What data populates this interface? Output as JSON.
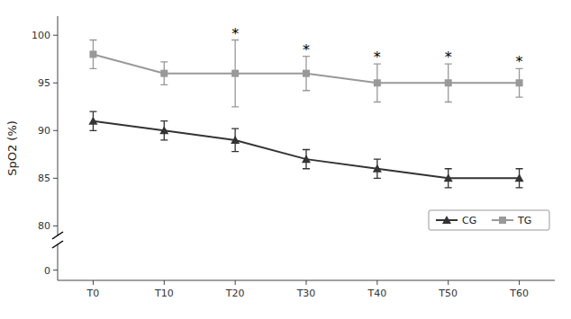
{
  "chart_data": [
    {
      "type": "line",
      "y_label": "SpO2 (%)",
      "categories": [
        "T0",
        "T10",
        "T20",
        "T30",
        "T40",
        "T50",
        "T60"
      ],
      "series": [
        {
          "name": "CG",
          "color": "#333333",
          "marker": "triangle",
          "values": [
            91.0,
            90.0,
            89.0,
            87.0,
            86.0,
            85.0,
            85.0
          ],
          "errors": [
            1.0,
            1.0,
            1.2,
            1.0,
            1.0,
            1.0,
            1.0
          ]
        },
        {
          "name": "TG",
          "color": "#999999",
          "marker": "square",
          "values": [
            98.0,
            96.0,
            96.0,
            96.0,
            95.0,
            95.0,
            95.0
          ],
          "errors": [
            1.5,
            1.2,
            3.5,
            1.8,
            2.0,
            2.0,
            1.5
          ]
        }
      ],
      "annotations": [
        {
          "text": "*",
          "x": "T20",
          "series": "TG"
        },
        {
          "text": "*",
          "x": "T30",
          "series": "TG"
        },
        {
          "text": "*",
          "x": "T40",
          "series": "TG"
        },
        {
          "text": "*",
          "x": "T50",
          "series": "TG"
        },
        {
          "text": "*",
          "x": "T60",
          "series": "TG"
        }
      ],
      "ylim": [
        79,
        102
      ],
      "yticks": [
        80,
        85,
        90,
        95,
        100
      ],
      "tick_labels": "y",
      "legend": "lower right",
      "grid": false
    },
    {
      "type": "line",
      "categories": [
        "T0",
        "T10",
        "T20",
        "T30",
        "T40",
        "T50",
        "T60"
      ],
      "series": [],
      "ylim": [
        -2,
        5
      ],
      "yticks": [
        0
      ],
      "grid": false
    }
  ]
}
